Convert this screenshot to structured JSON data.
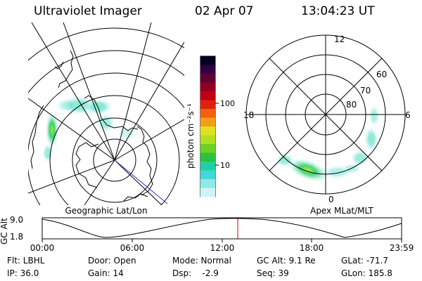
{
  "header": {
    "instrument": "Ultraviolet Imager",
    "date": "02 Apr 07",
    "time": "13:04:23 UT"
  },
  "geographic_panel": {
    "label": "Geographic Lat/Lon"
  },
  "apex_panel": {
    "label": "Apex MLat/MLT",
    "mlt_labels": {
      "top": "12",
      "bottom": "0",
      "left": "18",
      "right": "6"
    },
    "mlat_labels": [
      "60",
      "70",
      "80"
    ]
  },
  "colorbar": {
    "unit_label": "photon cm⁻²s⁻¹",
    "tick_labels": [
      "100",
      "10"
    ],
    "scale": "log"
  },
  "altitude_plot": {
    "ylabel": "GC Alt",
    "ytick_labels": [
      "9.0",
      "1.8"
    ],
    "xtick_labels": [
      "00:00",
      "06:00",
      "12:00",
      "18:00",
      "23:59"
    ],
    "current_time_marker": "13:04",
    "marker_color": "#d00000"
  },
  "info": {
    "filter": "Flt: LBHL",
    "ip": "IP: 36.0",
    "door": "Door: Open",
    "gain": "Gain: 14",
    "mode": "Mode: Normal",
    "dsp": "Dsp:    -2.9",
    "gc_alt": "GC Alt: 9.1 Re",
    "seq": "Seq: 39",
    "glat": "GLat: -71.7",
    "glon": "GLon: 185.8"
  }
}
